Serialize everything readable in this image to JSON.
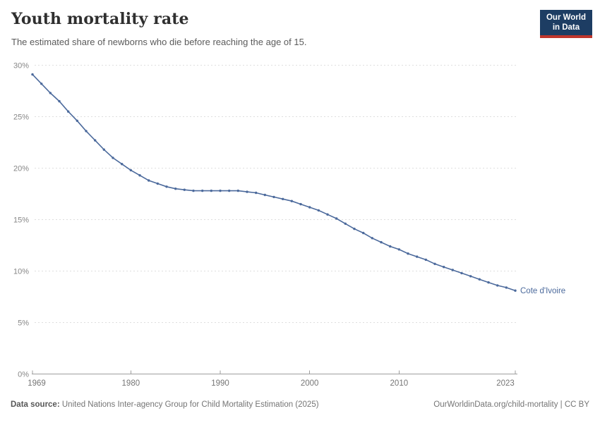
{
  "header": {
    "title": "Youth mortality rate",
    "subtitle": "The estimated share of newborns who die before reaching the age of 15.",
    "logo": {
      "line1": "Our World",
      "line2": "in Data"
    }
  },
  "chart_data": {
    "type": "line",
    "title": "Youth mortality rate",
    "subtitle": "The estimated share of newborns who die before reaching the age of 15.",
    "x": [
      1969,
      1970,
      1971,
      1972,
      1973,
      1974,
      1975,
      1976,
      1977,
      1978,
      1979,
      1980,
      1981,
      1982,
      1983,
      1984,
      1985,
      1986,
      1987,
      1988,
      1989,
      1990,
      1991,
      1992,
      1993,
      1994,
      1995,
      1996,
      1997,
      1998,
      1999,
      2000,
      2001,
      2002,
      2003,
      2004,
      2005,
      2006,
      2007,
      2008,
      2009,
      2010,
      2011,
      2012,
      2013,
      2014,
      2015,
      2016,
      2017,
      2018,
      2019,
      2020,
      2021,
      2022,
      2023
    ],
    "series": [
      {
        "name": "Cote d'Ivoire",
        "color": "#4C6A9C",
        "values": [
          29.1,
          28.2,
          27.3,
          26.5,
          25.5,
          24.6,
          23.6,
          22.7,
          21.8,
          21.0,
          20.4,
          19.8,
          19.3,
          18.8,
          18.5,
          18.2,
          18.0,
          17.9,
          17.8,
          17.8,
          17.8,
          17.8,
          17.8,
          17.8,
          17.7,
          17.6,
          17.4,
          17.2,
          17.0,
          16.8,
          16.5,
          16.2,
          15.9,
          15.5,
          15.1,
          14.6,
          14.1,
          13.7,
          13.2,
          12.8,
          12.4,
          12.1,
          11.7,
          11.4,
          11.1,
          10.7,
          10.4,
          10.1,
          9.8,
          9.5,
          9.2,
          8.9,
          8.6,
          8.4,
          8.1
        ]
      }
    ],
    "xlabel": "",
    "ylabel": "",
    "ylim": [
      0,
      30
    ],
    "yticks": [
      0,
      5,
      10,
      15,
      20,
      25,
      30
    ],
    "ytick_labels": [
      "0%",
      "5%",
      "10%",
      "15%",
      "20%",
      "25%",
      "30%"
    ],
    "xticks": [
      1969,
      1980,
      1990,
      2000,
      2010,
      2023
    ],
    "grid": "horizontal-dashed",
    "legend_position": "line-end-label",
    "unit": "%"
  },
  "footer": {
    "source_label": "Data source:",
    "source_text": " United Nations Inter-agency Group for Child Mortality Estimation (2025)",
    "link_text": "OurWorldinData.org/child-mortality | CC BY"
  },
  "colors": {
    "line": "#4C6A9C",
    "entity_label": "#4C6A9C",
    "grid": "#dedede",
    "axis": "#9e9e9e",
    "logo_bg": "#1d3d63",
    "logo_red": "#c0362c"
  }
}
